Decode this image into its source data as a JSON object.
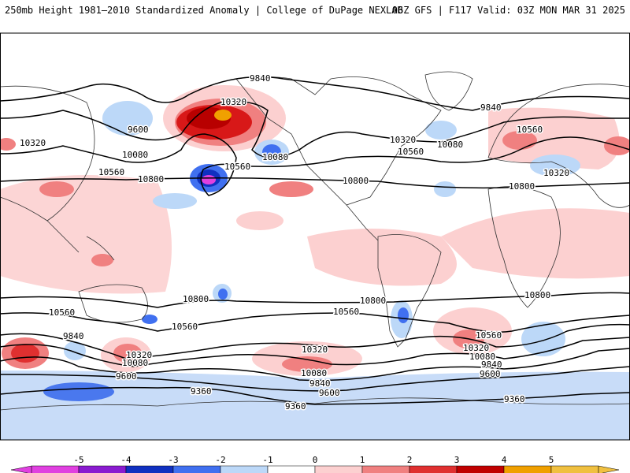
{
  "header": {
    "left": "250mb Height 1981–2010 Standardized Anomaly | College of DuPage NEXLAB",
    "right": "06Z GFS | F117 Valid: 03Z MON MAR 31 2025"
  },
  "contour_labels": [
    "9840",
    "10320",
    "9600",
    "10320",
    "10080",
    "10560",
    "10800",
    "10080",
    "10560",
    "10320",
    "10560",
    "10080",
    "10800",
    "9840",
    "10560",
    "10320",
    "10800",
    "10800",
    "10560",
    "9840",
    "10320",
    "10080",
    "9600",
    "10560",
    "10800",
    "10560",
    "10320",
    "10080",
    "9840",
    "9600",
    "9360",
    "10800",
    "10560",
    "10320",
    "10080",
    "9840",
    "9600",
    "9360",
    "9360"
  ],
  "colorbar": {
    "labels": [
      "-5",
      "-4",
      "-3",
      "-2",
      "-1",
      "0",
      "1",
      "2",
      "3",
      "4",
      "5"
    ],
    "colors": [
      "#e040e0",
      "#8a1bd0",
      "#1030c0",
      "#4070f0",
      "#bcd8f8",
      "#ffffff",
      "#fcd0d0",
      "#f08080",
      "#e03030",
      "#c00000",
      "#f0a000",
      "#f0c040"
    ]
  },
  "colors": {
    "contour": "#000000",
    "coast": "#333333",
    "frame": "#000000"
  }
}
